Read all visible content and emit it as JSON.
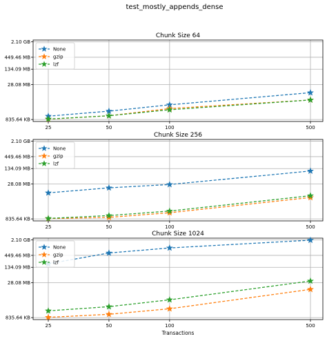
{
  "figure_title": "test_mostly_appends_dense",
  "chart_data": [
    {
      "type": "line",
      "title": "Chunk Size 64",
      "xlabel": "",
      "ylabel": "",
      "xscale": "log",
      "yscale": "log",
      "x": [
        25,
        50,
        100,
        500
      ],
      "x_tick_labels": [
        "25",
        "50",
        "100",
        "500"
      ],
      "y_tick_values_bytes": [
        856339,
        29360128,
        140603392,
        471292395,
        2254857830
      ],
      "y_tick_labels": [
        "835.64 KB",
        "28.08 MB",
        "134.09 MB",
        "449.46 MB",
        "2.10 GB"
      ],
      "ylim_bytes": [
        700000,
        2700000000
      ],
      "grid": true,
      "legend_position": "upper left",
      "series": [
        {
          "name": "None",
          "color": "#1f77b4",
          "values": [
            1200000,
            2000000,
            3800000,
            13000000
          ]
        },
        {
          "name": "gzip",
          "color": "#ff7f0e",
          "values": [
            880000,
            1250000,
            2600000,
            6200000
          ]
        },
        {
          "name": "lzf",
          "color": "#2ca02c",
          "values": [
            900000,
            1250000,
            2300000,
            6200000
          ]
        }
      ]
    },
    {
      "type": "line",
      "title": "Chunk Size 256",
      "xlabel": "",
      "ylabel": "",
      "xscale": "log",
      "yscale": "log",
      "x": [
        25,
        50,
        100,
        500
      ],
      "x_tick_labels": [
        "25",
        "50",
        "100",
        "500"
      ],
      "y_tick_values_bytes": [
        856339,
        29360128,
        140603392,
        471292395,
        2254857830
      ],
      "y_tick_labels": [
        "835.64 KB",
        "28.08 MB",
        "134.09 MB",
        "449.46 MB",
        "2.10 GB"
      ],
      "ylim_bytes": [
        700000,
        2700000000
      ],
      "grid": true,
      "legend_position": "upper left",
      "series": [
        {
          "name": "None",
          "color": "#1f77b4",
          "values": [
            12000000,
            20000000,
            28000000,
            110000000
          ]
        },
        {
          "name": "gzip",
          "color": "#ff7f0e",
          "values": [
            880000,
            1000000,
            1600000,
            7500000
          ]
        },
        {
          "name": "lzf",
          "color": "#2ca02c",
          "values": [
            900000,
            1200000,
            1900000,
            9000000
          ]
        }
      ]
    },
    {
      "type": "line",
      "title": "Chunk Size 1024",
      "xlabel": "Transactions",
      "ylabel": "",
      "xscale": "log",
      "yscale": "log",
      "x": [
        25,
        50,
        100,
        500
      ],
      "x_tick_labels": [
        "25",
        "50",
        "100",
        "500"
      ],
      "y_tick_values_bytes": [
        856339,
        29360128,
        140603392,
        471292395,
        2254857830
      ],
      "y_tick_labels": [
        "835.64 KB",
        "28.08 MB",
        "134.09 MB",
        "449.46 MB",
        "2.10 GB"
      ],
      "ylim_bytes": [
        700000,
        2700000000
      ],
      "grid": true,
      "legend_position": "upper left",
      "series": [
        {
          "name": "None",
          "color": "#1f77b4",
          "values": [
            200000000,
            600000000,
            1000000000,
            2200000000
          ]
        },
        {
          "name": "gzip",
          "color": "#ff7f0e",
          "values": [
            880000,
            1200000,
            2100000,
            15000000
          ]
        },
        {
          "name": "lzf",
          "color": "#2ca02c",
          "values": [
            1700000,
            2600000,
            5200000,
            35000000
          ]
        }
      ]
    }
  ]
}
